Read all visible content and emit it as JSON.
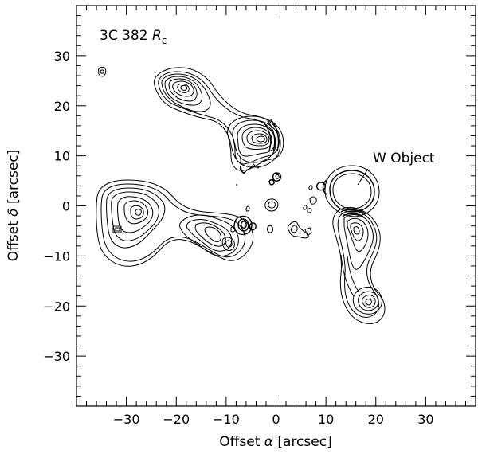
{
  "chart_data": {
    "type": "contour",
    "title": "3C 382",
    "title_band": "R",
    "title_band_sub": "c",
    "xlabel_prefix": "Offset ",
    "xlabel_symbol": "α",
    "xlabel_suffix": " [arcsec]",
    "ylabel_prefix": "Offset ",
    "ylabel_symbol": "δ",
    "ylabel_suffix": " [arcsec]",
    "xlim": [
      -40,
      40
    ],
    "ylim": [
      -40,
      40
    ],
    "x_ticks": [
      -30,
      -20,
      -10,
      0,
      10,
      20,
      30
    ],
    "y_ticks": [
      -30,
      -20,
      -10,
      0,
      10,
      20,
      30
    ],
    "x_tick_labels": [
      "−30",
      "−20",
      "−10",
      "0",
      "10",
      "20",
      "30"
    ],
    "y_tick_labels": [
      "−30",
      "−20",
      "−10",
      "0",
      "10",
      "20",
      "30"
    ],
    "annotation": {
      "text": "W Object",
      "target": [
        16,
        3.5
      ]
    },
    "grid": false
  }
}
